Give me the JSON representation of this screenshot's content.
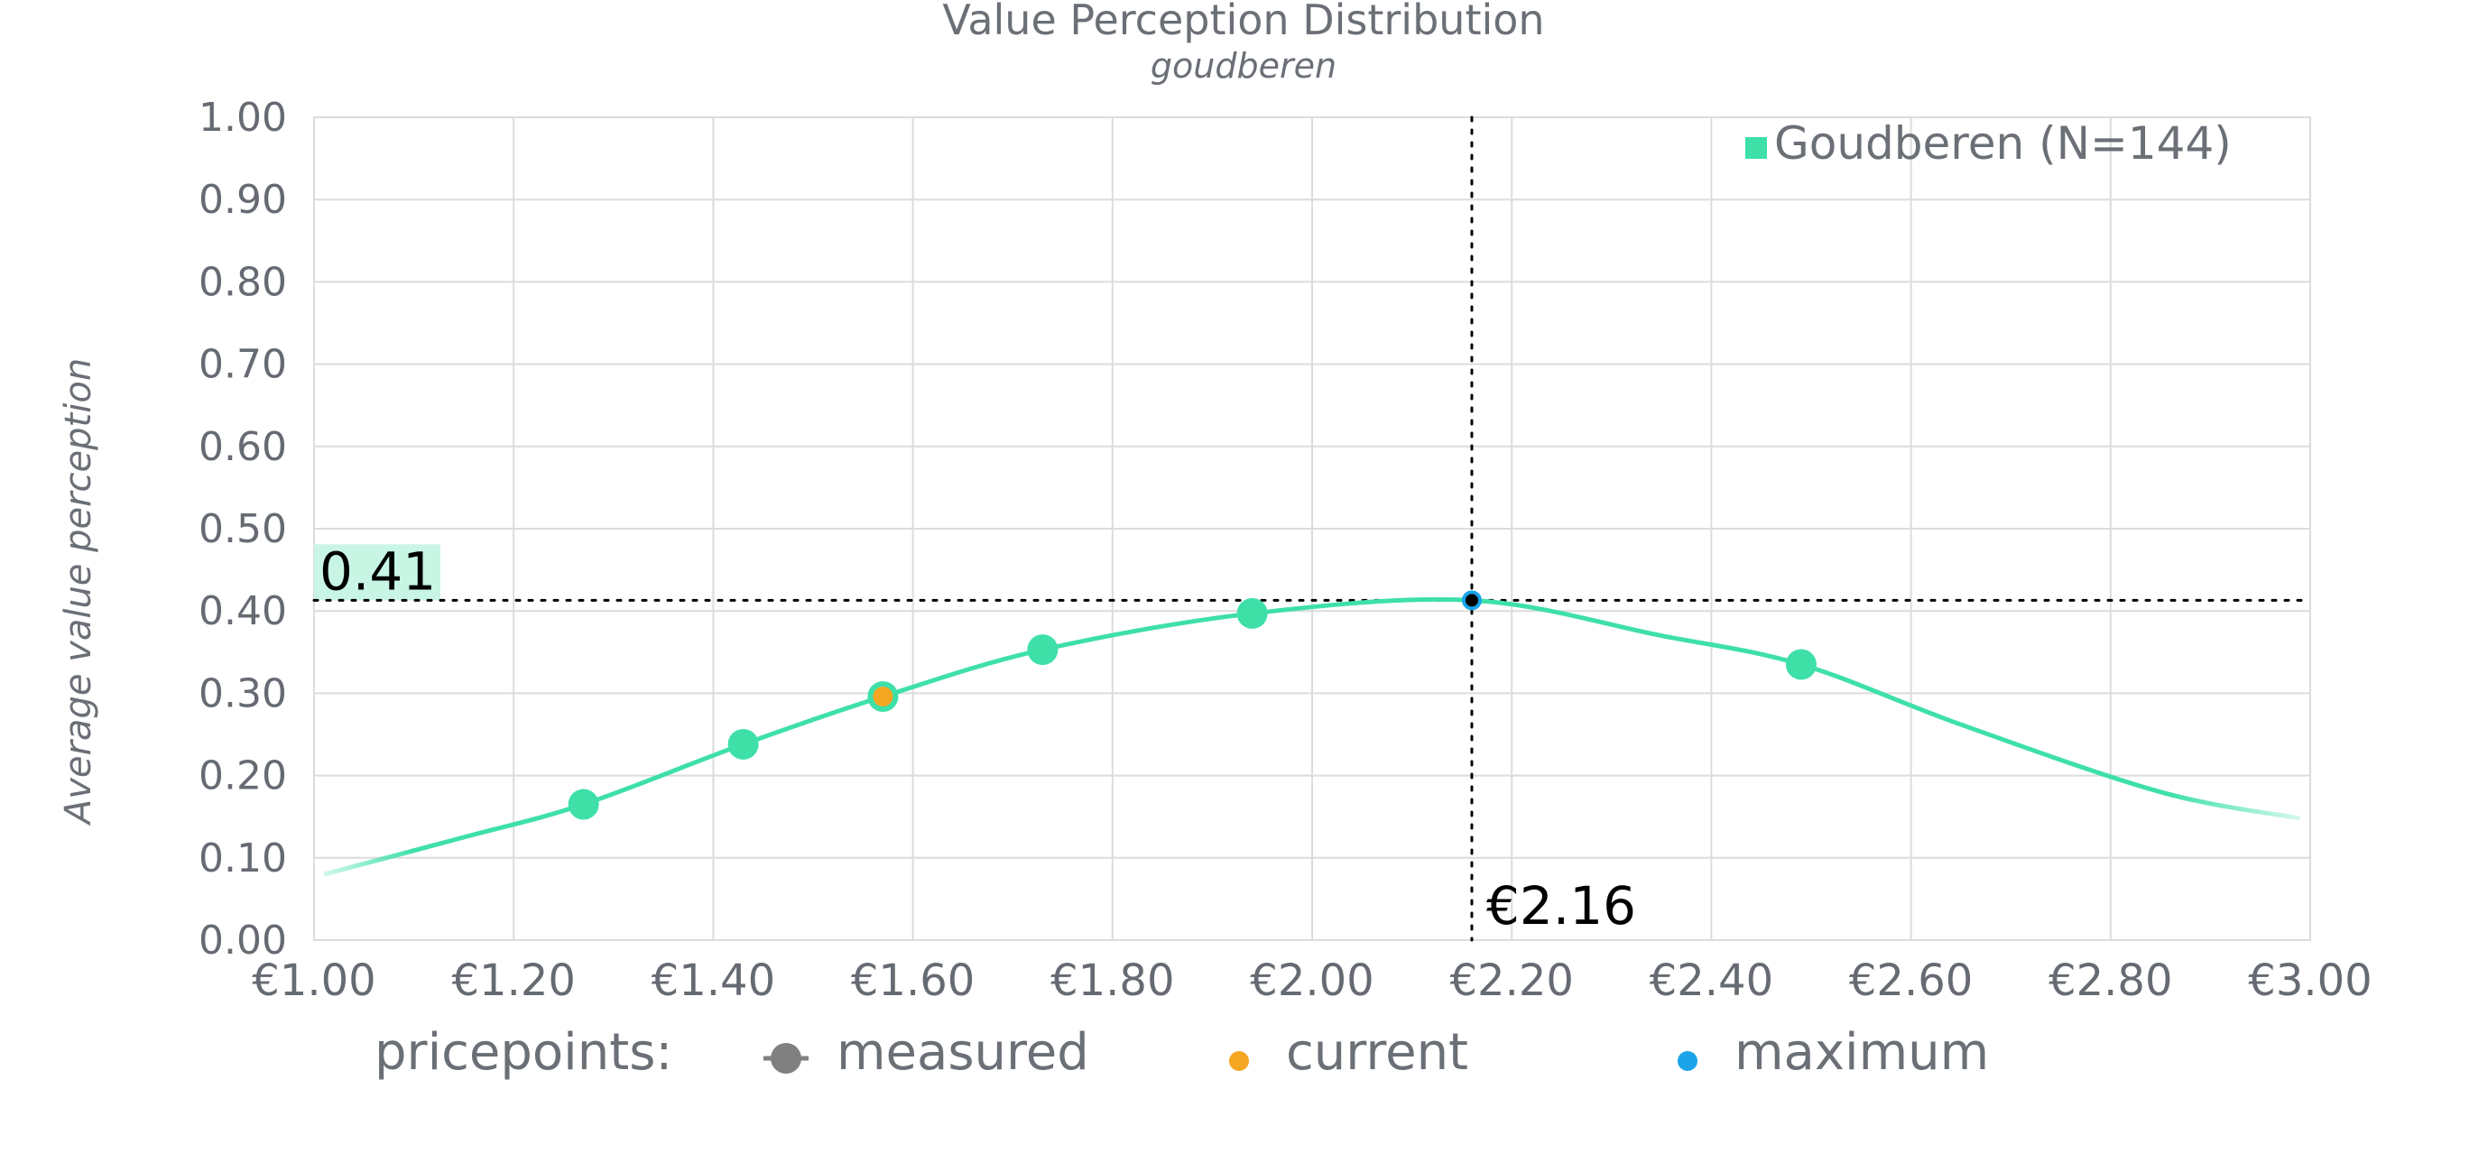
{
  "chart_data": {
    "type": "line",
    "title": "Value Perception Distribution",
    "subtitle": "goudberen",
    "xlabel": "",
    "ylabel": "Average value perception",
    "xlim": [
      1.0,
      3.0
    ],
    "ylim": [
      0.0,
      1.0
    ],
    "x_ticks": [
      1.0,
      1.2,
      1.4,
      1.6,
      1.8,
      2.0,
      2.2,
      2.4,
      2.6,
      2.8,
      3.0
    ],
    "x_tick_labels": [
      "€1.00",
      "€1.20",
      "€1.40",
      "€1.60",
      "€1.80",
      "€2.00",
      "€2.20",
      "€2.40",
      "€2.60",
      "€2.80",
      "€3.00"
    ],
    "y_ticks": [
      0.0,
      0.1,
      0.2,
      0.3,
      0.4,
      0.5,
      0.6,
      0.7,
      0.8,
      0.9,
      1.0
    ],
    "y_tick_labels": [
      "0.00",
      "0.10",
      "0.20",
      "0.30",
      "0.40",
      "0.50",
      "0.60",
      "0.70",
      "0.80",
      "0.90",
      "1.00"
    ],
    "grid": true,
    "series": [
      {
        "name": "Goudberen (N=144)",
        "color": "#3ee0a8",
        "curve": {
          "x": [
            1.01,
            1.15,
            1.27,
            1.43,
            1.57,
            1.73,
            1.94,
            2.16,
            2.35,
            2.49,
            2.65,
            2.85,
            2.99
          ],
          "y": [
            0.08,
            0.125,
            0.165,
            0.238,
            0.296,
            0.353,
            0.397,
            0.413,
            0.37,
            0.335,
            0.262,
            0.18,
            0.148
          ]
        },
        "measured_points": {
          "x": [
            1.27,
            1.43,
            1.57,
            1.73,
            1.94,
            2.49
          ],
          "y": [
            0.165,
            0.238,
            0.296,
            0.353,
            0.397,
            0.335
          ]
        }
      }
    ],
    "current_point": {
      "x": 1.57,
      "y": 0.296,
      "color": "#f5a623"
    },
    "maximum_point": {
      "x": 2.16,
      "y": 0.413,
      "color": "#1aa3e8"
    },
    "annotations": {
      "max_value_label": "0.41",
      "max_price_label": "€2.16",
      "max_value": 0.413,
      "max_price": 2.16
    },
    "legend": {
      "label": "Goudberen (N=144)",
      "position": "top-right"
    },
    "pricepoints_legend": {
      "title": "pricepoints:",
      "items": [
        {
          "label": "measured",
          "color": "#808080"
        },
        {
          "label": "current",
          "color": "#f5a623"
        },
        {
          "label": "maximum",
          "color": "#1aa3e8"
        }
      ]
    }
  }
}
